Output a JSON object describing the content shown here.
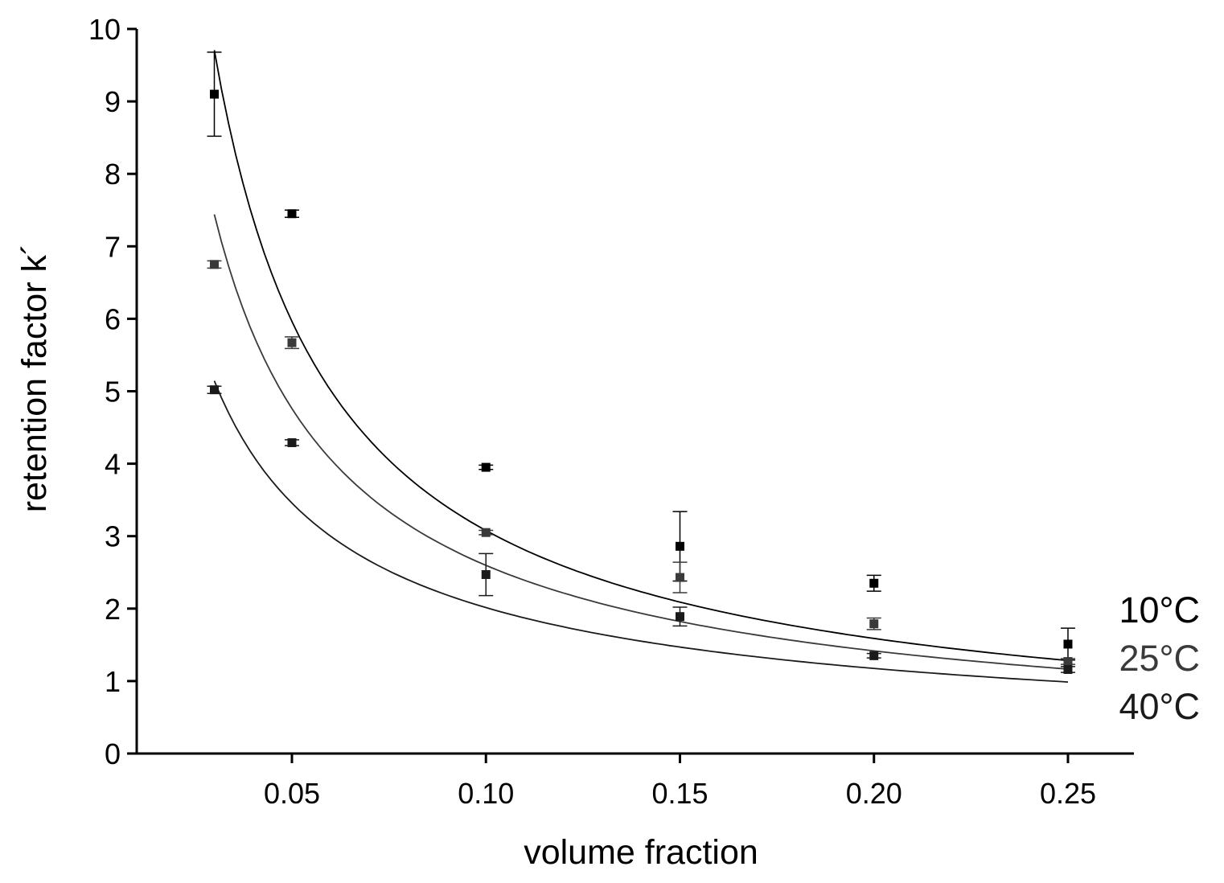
{
  "chart_data": {
    "type": "scatter",
    "xlabel": "volume fraction",
    "ylabel": "retention factor k´",
    "xlim": [
      0.01,
      0.267
    ],
    "ylim": [
      0,
      10
    ],
    "x_ticks": [
      {
        "value": 0.05,
        "label": "0.05"
      },
      {
        "value": 0.1,
        "label": "0.10"
      },
      {
        "value": 0.15,
        "label": "0.15"
      },
      {
        "value": 0.2,
        "label": "0.20"
      },
      {
        "value": 0.25,
        "label": "0.25"
      }
    ],
    "y_ticks": [
      {
        "value": 0,
        "label": "0"
      },
      {
        "value": 1,
        "label": "1"
      },
      {
        "value": 2,
        "label": "2"
      },
      {
        "value": 3,
        "label": "3"
      },
      {
        "value": 4,
        "label": "4"
      },
      {
        "value": 5,
        "label": "5"
      },
      {
        "value": 6,
        "label": "6"
      },
      {
        "value": 7,
        "label": "7"
      },
      {
        "value": 8,
        "label": "8"
      },
      {
        "value": 9,
        "label": "9"
      },
      {
        "value": 10,
        "label": "10"
      }
    ],
    "grid": false,
    "legend_position": "right",
    "series": [
      {
        "name": "10°C",
        "color": "#000000",
        "x": [
          0.03,
          0.05,
          0.1,
          0.15,
          0.2,
          0.25
        ],
        "y": [
          9.1,
          7.45,
          3.95,
          2.86,
          2.35,
          1.51
        ],
        "err": [
          0.58,
          0.05,
          0.03,
          0.48,
          0.11,
          0.22
        ],
        "fit": {
          "a": 0.342,
          "b": 0.9542
        }
      },
      {
        "name": "25°C",
        "color": "#3a3a3a",
        "x": [
          0.03,
          0.05,
          0.1,
          0.15,
          0.2,
          0.25
        ],
        "y": [
          6.75,
          5.67,
          3.05,
          2.43,
          1.79,
          1.27
        ],
        "err": [
          0.05,
          0.08,
          0.03,
          0.21,
          0.08,
          0.04
        ],
        "fit": {
          "a": 0.347,
          "b": 0.8742
        }
      },
      {
        "name": "40°C",
        "color": "#1a1a1a",
        "x": [
          0.03,
          0.05,
          0.1,
          0.15,
          0.2,
          0.25
        ],
        "y": [
          5.02,
          4.29,
          2.47,
          1.89,
          1.35,
          1.16
        ],
        "err": [
          0.05,
          0.04,
          0.29,
          0.13,
          0.03,
          0.04
        ],
        "fit": {
          "a": 0.3355,
          "b": 0.7785
        }
      }
    ]
  }
}
